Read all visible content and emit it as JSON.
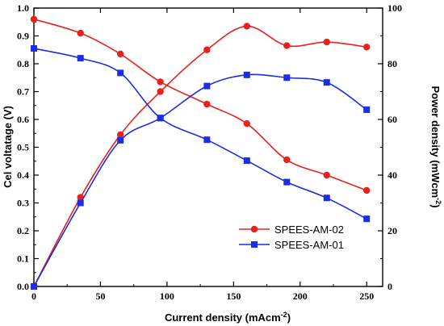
{
  "chart_data": {
    "type": "line",
    "xlabel": "Current density (mAcm",
    "xlabel_sup": "-2",
    "xlabel_tail": ")",
    "ylabel_left": "Cel voltatage (V)",
    "ylabel_right": "Power density (mWcm",
    "ylabel_right_sup": "-2",
    "ylabel_right_tail": ")",
    "xlim": [
      0,
      262
    ],
    "ylim_left": [
      0.0,
      1.0
    ],
    "ylim_right": [
      0,
      100
    ],
    "x_ticks": [
      0,
      50,
      100,
      150,
      200,
      250
    ],
    "y_left_ticks": [
      "0.0",
      "0.1",
      "0.2",
      "0.3",
      "0.4",
      "0.5",
      "0.6",
      "0.7",
      "0.8",
      "0.9",
      "1.0"
    ],
    "y_right_ticks": [
      0,
      20,
      40,
      60,
      80,
      100
    ],
    "legend_position": "lower-right",
    "series": [
      {
        "name": "SPEES-AM-02",
        "color": "#e8211e",
        "marker": "circle",
        "voltage": {
          "x": [
            0,
            35,
            65,
            95,
            130,
            160,
            190,
            220,
            250
          ],
          "y": [
            0.96,
            0.91,
            0.835,
            0.735,
            0.655,
            0.585,
            0.455,
            0.4,
            0.345
          ]
        },
        "power": {
          "x": [
            0,
            35,
            65,
            95,
            130,
            160,
            190,
            220,
            250
          ],
          "y": [
            0,
            32,
            54.5,
            70,
            85,
            93.5,
            86.5,
            87.8,
            86
          ]
        }
      },
      {
        "name": "SPEES-AM-01",
        "color": "#1a2ee6",
        "marker": "square",
        "voltage": {
          "x": [
            0,
            35,
            65,
            95,
            130,
            160,
            190,
            220,
            250
          ],
          "y": [
            0.855,
            0.82,
            0.767,
            0.605,
            0.527,
            0.452,
            0.375,
            0.318,
            0.243
          ]
        },
        "power": {
          "x": [
            0,
            35,
            65,
            95,
            130,
            160,
            190,
            220,
            250
          ],
          "y": [
            0,
            30,
            52.5,
            60.5,
            72,
            76,
            75,
            73.3,
            63.5
          ]
        }
      }
    ]
  }
}
